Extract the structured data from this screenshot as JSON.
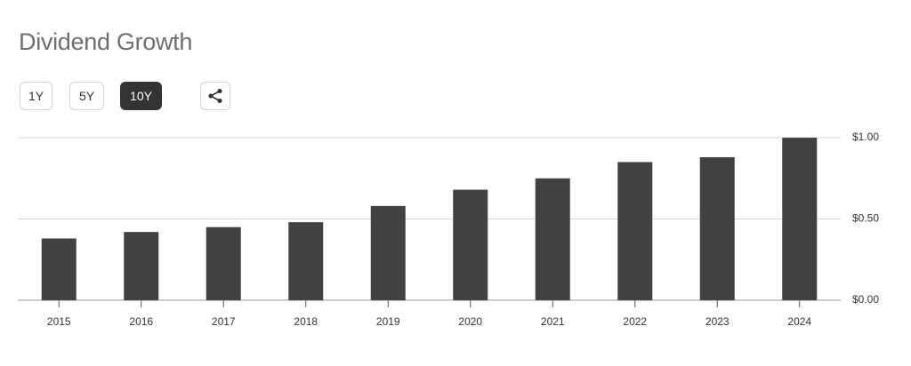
{
  "title": "Dividend Growth",
  "buttons": [
    "1Y",
    "5Y",
    "10Y"
  ],
  "selected_button": 2,
  "chart_data": {
    "type": "bar",
    "categories": [
      "2015",
      "2016",
      "2017",
      "2018",
      "2019",
      "2020",
      "2021",
      "2022",
      "2023",
      "2024"
    ],
    "values": [
      0.38,
      0.42,
      0.45,
      0.48,
      0.58,
      0.68,
      0.75,
      0.85,
      0.88,
      1.0
    ],
    "color": "#414144",
    "ylim": [
      0,
      1
    ],
    "yticks": [
      {
        "value": 0,
        "label": "$0.00"
      },
      {
        "value": 0.5,
        "label": "$0.50"
      },
      {
        "value": 1,
        "label": "$1.00"
      }
    ],
    "grid": true
  }
}
